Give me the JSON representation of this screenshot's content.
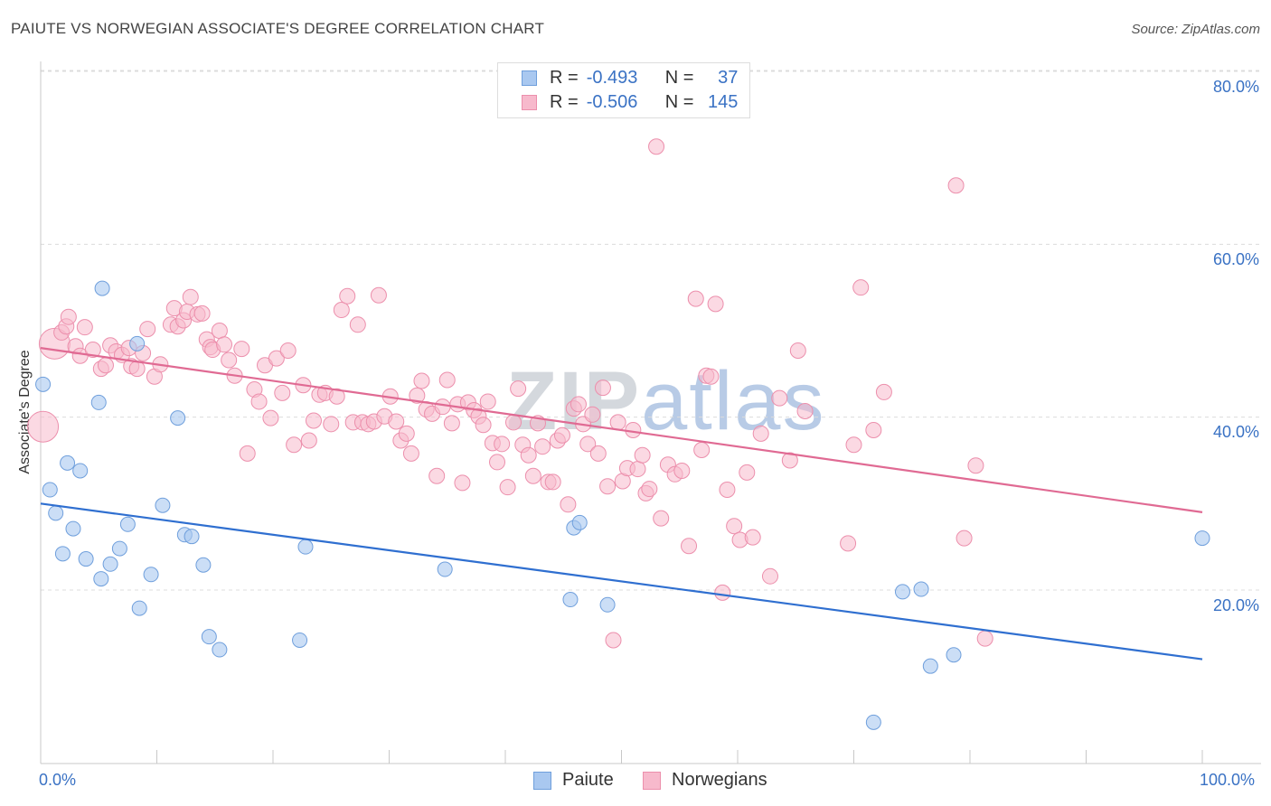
{
  "title": "PAIUTE VS NORWEGIAN ASSOCIATE'S DEGREE CORRELATION CHART",
  "source": "Source: ZipAtlas.com",
  "watermark": {
    "zip": "ZIP",
    "atlas": "atlas"
  },
  "colors": {
    "paiute_fill": "#a9c8f0",
    "paiute_stroke": "#6f9fdc",
    "paiute_line": "#2f6fd0",
    "norw_fill": "#f7b9cc",
    "norw_stroke": "#ec8fac",
    "norw_line": "#e06a93",
    "accent_text": "#3a72c4"
  },
  "stats_legend": {
    "rows": [
      {
        "r_label": "R =",
        "r_value": "-0.493",
        "n_label": "N =",
        "n_value": "37"
      },
      {
        "r_label": "R =",
        "r_value": "-0.506",
        "n_label": "N =",
        "n_value": "145"
      }
    ]
  },
  "bottom_legend": {
    "paiute": "Paiute",
    "norwegians": "Norwegians"
  },
  "x_tick_labels": {
    "left": "0.0%",
    "right": "100.0%"
  },
  "y_tick_labels": [
    "80.0%",
    "60.0%",
    "40.0%",
    "20.0%"
  ],
  "chart_data": {
    "type": "scatter",
    "title": "PAIUTE VS NORWEGIAN ASSOCIATE'S DEGREE CORRELATION CHART",
    "xlabel": "",
    "ylabel": "Associate's Degree",
    "xlim": [
      0,
      100
    ],
    "ylim": [
      2,
      84
    ],
    "yticks": [
      20,
      40,
      60,
      80
    ],
    "series": [
      {
        "name": "Paiute",
        "r": -0.493,
        "n": 37,
        "trend": {
          "x": [
            0,
            100
          ],
          "y": [
            30.0,
            12.0
          ]
        },
        "points": [
          [
            0.2,
            43.8
          ],
          [
            0.8,
            31.6
          ],
          [
            1.3,
            28.9
          ],
          [
            1.9,
            24.2
          ],
          [
            2.3,
            34.7
          ],
          [
            2.8,
            27.1
          ],
          [
            3.4,
            33.8
          ],
          [
            3.9,
            23.6
          ],
          [
            5.0,
            41.7
          ],
          [
            5.3,
            54.9
          ],
          [
            5.2,
            21.3
          ],
          [
            6.0,
            23.0
          ],
          [
            6.8,
            24.8
          ],
          [
            7.5,
            27.6
          ],
          [
            8.5,
            17.9
          ],
          [
            8.3,
            48.5
          ],
          [
            9.5,
            21.8
          ],
          [
            10.5,
            29.8
          ],
          [
            11.8,
            39.9
          ],
          [
            12.4,
            26.4
          ],
          [
            13.0,
            26.2
          ],
          [
            14.0,
            22.9
          ],
          [
            14.5,
            14.6
          ],
          [
            15.4,
            13.1
          ],
          [
            22.3,
            14.2
          ],
          [
            22.8,
            25.0
          ],
          [
            34.8,
            22.4
          ],
          [
            45.6,
            18.9
          ],
          [
            45.9,
            27.2
          ],
          [
            46.4,
            27.8
          ],
          [
            48.8,
            18.3
          ],
          [
            71.7,
            4.7
          ],
          [
            74.2,
            19.8
          ],
          [
            75.8,
            20.1
          ],
          [
            76.6,
            11.2
          ],
          [
            78.6,
            12.5
          ],
          [
            100.0,
            26.0
          ]
        ]
      },
      {
        "name": "Norwegians",
        "r": -0.506,
        "n": 145,
        "trend": {
          "x": [
            0,
            100
          ],
          "y": [
            48.0,
            29.0
          ]
        },
        "points": [
          [
            0.2,
            38.9
          ],
          [
            1.2,
            48.5
          ],
          [
            1.8,
            49.8
          ],
          [
            2.2,
            50.5
          ],
          [
            2.4,
            51.6
          ],
          [
            3.0,
            48.2
          ],
          [
            3.4,
            47.1
          ],
          [
            3.8,
            50.4
          ],
          [
            4.5,
            47.8
          ],
          [
            5.2,
            45.6
          ],
          [
            5.6,
            46.0
          ],
          [
            6.0,
            48.3
          ],
          [
            6.5,
            47.6
          ],
          [
            7.0,
            47.2
          ],
          [
            7.6,
            48.0
          ],
          [
            7.8,
            45.9
          ],
          [
            8.3,
            45.6
          ],
          [
            8.8,
            47.4
          ],
          [
            9.2,
            50.2
          ],
          [
            9.8,
            44.7
          ],
          [
            10.3,
            46.1
          ],
          [
            11.2,
            50.7
          ],
          [
            11.5,
            52.6
          ],
          [
            11.8,
            50.5
          ],
          [
            12.3,
            51.2
          ],
          [
            12.6,
            52.2
          ],
          [
            12.9,
            53.9
          ],
          [
            13.5,
            51.9
          ],
          [
            13.9,
            52.0
          ],
          [
            14.3,
            49.0
          ],
          [
            14.6,
            48.1
          ],
          [
            14.8,
            47.8
          ],
          [
            15.4,
            50.0
          ],
          [
            15.8,
            48.4
          ],
          [
            16.2,
            46.6
          ],
          [
            16.7,
            44.8
          ],
          [
            17.3,
            47.9
          ],
          [
            17.8,
            35.8
          ],
          [
            18.4,
            43.2
          ],
          [
            18.8,
            41.8
          ],
          [
            19.3,
            46.0
          ],
          [
            19.8,
            39.9
          ],
          [
            20.3,
            46.8
          ],
          [
            20.8,
            42.8
          ],
          [
            21.3,
            47.7
          ],
          [
            21.8,
            36.8
          ],
          [
            22.6,
            43.7
          ],
          [
            23.1,
            37.3
          ],
          [
            23.5,
            39.6
          ],
          [
            24.0,
            42.6
          ],
          [
            24.5,
            42.8
          ],
          [
            25.0,
            39.2
          ],
          [
            25.5,
            42.4
          ],
          [
            25.9,
            52.4
          ],
          [
            26.4,
            54.0
          ],
          [
            26.9,
            39.4
          ],
          [
            27.3,
            50.7
          ],
          [
            27.7,
            39.4
          ],
          [
            28.2,
            39.2
          ],
          [
            28.7,
            39.5
          ],
          [
            29.1,
            54.1
          ],
          [
            29.6,
            40.1
          ],
          [
            30.1,
            42.4
          ],
          [
            30.6,
            39.5
          ],
          [
            31.0,
            37.3
          ],
          [
            31.5,
            38.1
          ],
          [
            31.9,
            35.8
          ],
          [
            32.4,
            42.5
          ],
          [
            32.8,
            44.2
          ],
          [
            33.2,
            40.9
          ],
          [
            33.7,
            40.4
          ],
          [
            34.1,
            33.2
          ],
          [
            34.6,
            41.2
          ],
          [
            35.0,
            44.3
          ],
          [
            35.4,
            39.3
          ],
          [
            35.9,
            41.5
          ],
          [
            36.3,
            32.4
          ],
          [
            36.8,
            41.7
          ],
          [
            37.3,
            40.8
          ],
          [
            37.7,
            40.1
          ],
          [
            38.1,
            39.1
          ],
          [
            38.5,
            41.8
          ],
          [
            38.9,
            37.0
          ],
          [
            39.3,
            34.8
          ],
          [
            39.7,
            36.9
          ],
          [
            40.2,
            31.9
          ],
          [
            40.7,
            39.4
          ],
          [
            41.1,
            43.3
          ],
          [
            41.5,
            36.8
          ],
          [
            42.0,
            35.6
          ],
          [
            42.4,
            33.2
          ],
          [
            42.8,
            39.3
          ],
          [
            43.2,
            36.6
          ],
          [
            43.7,
            32.5
          ],
          [
            44.1,
            32.5
          ],
          [
            44.5,
            37.3
          ],
          [
            44.9,
            37.9
          ],
          [
            45.4,
            29.9
          ],
          [
            45.9,
            41.0
          ],
          [
            46.3,
            41.5
          ],
          [
            46.7,
            39.2
          ],
          [
            47.1,
            36.9
          ],
          [
            47.5,
            40.3
          ],
          [
            48.0,
            35.8
          ],
          [
            48.4,
            43.4
          ],
          [
            48.8,
            32.0
          ],
          [
            49.3,
            14.2
          ],
          [
            49.7,
            39.4
          ],
          [
            50.1,
            32.6
          ],
          [
            50.5,
            34.1
          ],
          [
            51.0,
            38.5
          ],
          [
            51.4,
            34.0
          ],
          [
            51.8,
            35.6
          ],
          [
            52.1,
            31.2
          ],
          [
            52.4,
            31.7
          ],
          [
            53.0,
            71.3
          ],
          [
            53.4,
            28.3
          ],
          [
            54.0,
            34.5
          ],
          [
            54.6,
            33.4
          ],
          [
            55.2,
            33.8
          ],
          [
            55.8,
            25.1
          ],
          [
            56.4,
            53.7
          ],
          [
            56.9,
            36.2
          ],
          [
            57.3,
            44.8
          ],
          [
            57.7,
            44.7
          ],
          [
            58.1,
            53.1
          ],
          [
            58.7,
            19.7
          ],
          [
            59.1,
            31.6
          ],
          [
            59.7,
            27.4
          ],
          [
            60.2,
            25.8
          ],
          [
            60.8,
            33.6
          ],
          [
            61.3,
            26.1
          ],
          [
            62.0,
            38.1
          ],
          [
            62.8,
            21.6
          ],
          [
            63.6,
            42.2
          ],
          [
            64.5,
            35.0
          ],
          [
            65.2,
            47.7
          ],
          [
            65.8,
            40.7
          ],
          [
            69.5,
            25.4
          ],
          [
            70.6,
            55.0
          ],
          [
            71.7,
            38.5
          ],
          [
            72.6,
            42.9
          ],
          [
            78.8,
            66.8
          ],
          [
            79.5,
            26.0
          ],
          [
            80.5,
            34.4
          ],
          [
            81.3,
            14.4
          ],
          [
            70.0,
            36.8
          ]
        ]
      }
    ]
  }
}
